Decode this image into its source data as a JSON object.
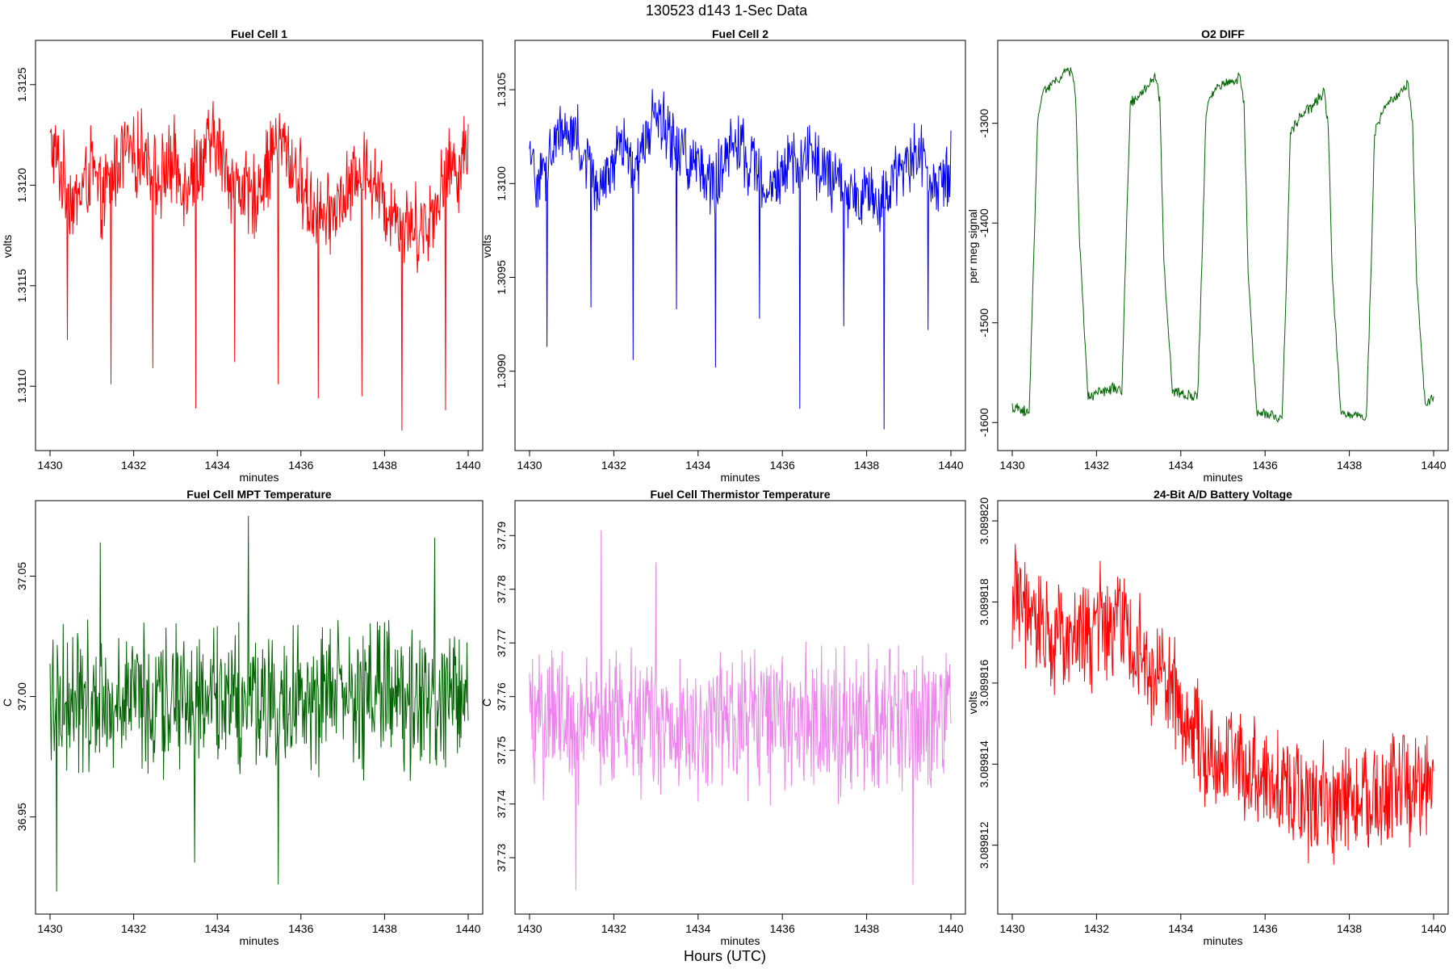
{
  "figure": {
    "title": "130523   d143   1-Sec Data",
    "xlabel": "Hours (UTC)"
  },
  "chart_data": [
    {
      "type": "line",
      "title": "Fuel Cell 1",
      "xlabel": "minutes",
      "ylabel": "volts",
      "color": "#ff0000",
      "xlim": [
        1430,
        1440
      ],
      "ylim": [
        1.31072,
        1.31268
      ],
      "xticks": [
        1430,
        1432,
        1434,
        1436,
        1438,
        1440
      ],
      "yticks": [
        1.311,
        1.3115,
        1.312,
        1.3125
      ],
      "ytick_labels": [
        "1.3110",
        "1.3115",
        "1.3120",
        "1.3125"
      ],
      "series": [
        {
          "x": [
            1430.0,
            1430.2,
            1430.4,
            1430.6,
            1430.8,
            1431.0,
            1431.2,
            1431.4,
            1431.6,
            1431.8,
            1432.0,
            1432.2,
            1432.4,
            1432.6,
            1432.8,
            1433.0,
            1433.2,
            1433.4,
            1433.6,
            1433.8,
            1434.0,
            1434.2,
            1434.4,
            1434.6,
            1434.8,
            1435.0,
            1435.2,
            1435.4,
            1435.6,
            1435.8,
            1436.0,
            1436.2,
            1436.4,
            1436.6,
            1436.8,
            1437.0,
            1437.2,
            1437.4,
            1437.6,
            1437.8,
            1438.0,
            1438.2,
            1438.4,
            1438.6,
            1438.8,
            1439.0,
            1439.2,
            1439.4,
            1439.6,
            1439.8,
            1440.0
          ],
          "y": [
            1.3122,
            1.3121,
            1.312,
            1.3119,
            1.312,
            1.3121,
            1.3119,
            1.312,
            1.3121,
            1.3122,
            1.3121,
            1.3122,
            1.3121,
            1.312,
            1.3121,
            1.3121,
            1.312,
            1.3121,
            1.3121,
            1.3122,
            1.3122,
            1.3121,
            1.312,
            1.312,
            1.3119,
            1.312,
            1.3121,
            1.3122,
            1.3122,
            1.3121,
            1.312,
            1.3119,
            1.3119,
            1.3118,
            1.3119,
            1.3119,
            1.312,
            1.3121,
            1.3121,
            1.312,
            1.3119,
            1.3119,
            1.3118,
            1.3118,
            1.3118,
            1.3118,
            1.3119,
            1.312,
            1.3121,
            1.3121,
            1.3122
          ]
        }
      ],
      "spikes": [
        {
          "x": 1430.42,
          "y": 1.31123
        },
        {
          "x": 1431.45,
          "y": 1.31101
        },
        {
          "x": 1432.45,
          "y": 1.31109
        },
        {
          "x": 1433.48,
          "y": 1.31089
        },
        {
          "x": 1434.42,
          "y": 1.31112
        },
        {
          "x": 1435.45,
          "y": 1.31101
        },
        {
          "x": 1436.42,
          "y": 1.31094
        },
        {
          "x": 1437.45,
          "y": 1.31095
        },
        {
          "x": 1438.42,
          "y": 1.31078
        },
        {
          "x": 1439.45,
          "y": 1.31088
        }
      ]
    },
    {
      "type": "line",
      "title": "Fuel Cell 2",
      "xlabel": "minutes",
      "ylabel": "volts",
      "color": "#0000ff",
      "xlim": [
        1430,
        1440
      ],
      "ylim": [
        1.30862,
        1.31072
      ],
      "xticks": [
        1430,
        1432,
        1434,
        1436,
        1438,
        1440
      ],
      "yticks": [
        1.309,
        1.3095,
        1.31,
        1.3105
      ],
      "ytick_labels": [
        "1.3090",
        "1.3095",
        "1.3100",
        "1.3105"
      ],
      "series": [
        {
          "x": [
            1430.0,
            1430.2,
            1430.4,
            1430.6,
            1430.8,
            1431.0,
            1431.2,
            1431.4,
            1431.6,
            1431.8,
            1432.0,
            1432.2,
            1432.4,
            1432.6,
            1432.8,
            1433.0,
            1433.2,
            1433.4,
            1433.6,
            1433.8,
            1434.0,
            1434.2,
            1434.4,
            1434.6,
            1434.8,
            1435.0,
            1435.2,
            1435.4,
            1435.6,
            1435.8,
            1436.0,
            1436.2,
            1436.4,
            1436.6,
            1436.8,
            1437.0,
            1437.2,
            1437.4,
            1437.6,
            1437.8,
            1438.0,
            1438.2,
            1438.4,
            1438.6,
            1438.8,
            1439.0,
            1439.2,
            1439.4,
            1439.6,
            1439.8,
            1440.0
          ],
          "y": [
            1.3101,
            1.31,
            1.3101,
            1.3102,
            1.3103,
            1.3103,
            1.3102,
            1.3101,
            1.31,
            1.31,
            1.3101,
            1.3102,
            1.3101,
            1.3101,
            1.3103,
            1.3104,
            1.3103,
            1.3102,
            1.3102,
            1.3101,
            1.3101,
            1.31,
            1.31,
            1.3101,
            1.3102,
            1.3102,
            1.3101,
            1.3101,
            1.31,
            1.31,
            1.31,
            1.3101,
            1.3101,
            1.3102,
            1.3101,
            1.3101,
            1.31,
            1.31,
            1.3099,
            1.3099,
            1.31,
            1.3099,
            1.3099,
            1.31,
            1.3101,
            1.3101,
            1.3102,
            1.3101,
            1.31,
            1.31,
            1.3101
          ]
        }
      ],
      "spikes": [
        {
          "x": 1430.42,
          "y": 1.30913
        },
        {
          "x": 1431.45,
          "y": 1.30934
        },
        {
          "x": 1432.45,
          "y": 1.30906
        },
        {
          "x": 1433.48,
          "y": 1.30933
        },
        {
          "x": 1434.42,
          "y": 1.30902
        },
        {
          "x": 1435.45,
          "y": 1.30928
        },
        {
          "x": 1436.42,
          "y": 1.3088
        },
        {
          "x": 1437.45,
          "y": 1.30924
        },
        {
          "x": 1438.42,
          "y": 1.30869
        },
        {
          "x": 1439.45,
          "y": 1.30922
        }
      ]
    },
    {
      "type": "line",
      "title": "O2 DIFF",
      "xlabel": "minutes",
      "ylabel": "per meg signal",
      "color": "#006400",
      "xlim": [
        1430,
        1440
      ],
      "ylim": [
        -1620,
        -1225
      ],
      "xticks": [
        1430,
        1432,
        1434,
        1436,
        1438,
        1440
      ],
      "yticks": [
        -1600,
        -1500,
        -1400,
        -1300
      ],
      "ytick_labels": [
        "-1600",
        "-1500",
        "-1400",
        "-1300"
      ],
      "series": [
        {
          "x": [
            1430.0,
            1430.4,
            1430.5,
            1430.6,
            1430.7,
            1431.4,
            1431.5,
            1431.6,
            1431.8,
            1432.4,
            1432.6,
            1432.7,
            1432.8,
            1433.4,
            1433.5,
            1433.6,
            1433.8,
            1434.4,
            1434.5,
            1434.6,
            1434.8,
            1435.4,
            1435.5,
            1435.6,
            1435.8,
            1436.4,
            1436.5,
            1436.6,
            1436.8,
            1437.4,
            1437.5,
            1437.6,
            1437.8,
            1438.4,
            1438.5,
            1438.6,
            1438.8,
            1439.4,
            1439.5,
            1439.6,
            1439.8,
            1440.0
          ],
          "y": [
            -1585,
            -1590,
            -1450,
            -1300,
            -1270,
            -1245,
            -1270,
            -1420,
            -1575,
            -1565,
            -1570,
            -1420,
            -1280,
            -1255,
            -1275,
            -1440,
            -1570,
            -1575,
            -1440,
            -1290,
            -1265,
            -1255,
            -1280,
            -1450,
            -1590,
            -1595,
            -1470,
            -1310,
            -1295,
            -1270,
            -1300,
            -1460,
            -1590,
            -1595,
            -1470,
            -1310,
            -1285,
            -1260,
            -1300,
            -1460,
            -1580,
            -1575
          ]
        }
      ]
    },
    {
      "type": "line",
      "title": "Fuel Cell MPT Temperature",
      "xlabel": "minutes",
      "ylabel": "C",
      "color": "#006400",
      "xlim": [
        1430,
        1440
      ],
      "ylim": [
        36.913,
        37.078
      ],
      "xticks": [
        1430,
        1432,
        1434,
        1436,
        1438,
        1440
      ],
      "yticks": [
        36.95,
        37.0,
        37.05
      ],
      "ytick_labels": [
        "36.95",
        "37.00",
        "37.05"
      ],
      "mean": 37.0,
      "amplitude": 0.03,
      "series": [],
      "spikes": [
        {
          "x": 1430.15,
          "y": 36.919
        },
        {
          "x": 1431.2,
          "y": 37.064
        },
        {
          "x": 1433.45,
          "y": 36.931
        },
        {
          "x": 1434.75,
          "y": 37.075
        },
        {
          "x": 1435.45,
          "y": 36.922
        },
        {
          "x": 1439.2,
          "y": 37.066
        }
      ]
    },
    {
      "type": "line",
      "title": "Fuel Cell Thermistor Temperature",
      "xlabel": "minutes",
      "ylabel": "C",
      "color": "#ee82ee",
      "xlim": [
        1430,
        1440
      ],
      "ylim": [
        37.721,
        37.795
      ],
      "xticks": [
        1430,
        1432,
        1434,
        1436,
        1438,
        1440
      ],
      "yticks": [
        37.73,
        37.74,
        37.75,
        37.76,
        37.77,
        37.78,
        37.79
      ],
      "ytick_labels": [
        "37.73",
        "37.74",
        "37.75",
        "37.76",
        "37.77",
        "37.78",
        "37.79"
      ],
      "mean": 37.755,
      "amplitude": 0.013,
      "series": [],
      "spikes": [
        {
          "x": 1431.1,
          "y": 37.724
        },
        {
          "x": 1431.7,
          "y": 37.791
        },
        {
          "x": 1433.0,
          "y": 37.785
        },
        {
          "x": 1439.1,
          "y": 37.725
        }
      ]
    },
    {
      "type": "line",
      "title": "24-Bit A/D Battery Voltage",
      "xlabel": "minutes",
      "ylabel": "volts",
      "color": "#ff0000",
      "xlim": [
        1430,
        1440
      ],
      "ylim": [
        3.0898105,
        3.0898203
      ],
      "xticks": [
        1430,
        1432,
        1434,
        1436,
        1438,
        1440
      ],
      "yticks": [
        3.089812,
        3.089814,
        3.089816,
        3.089818,
        3.08982
      ],
      "ytick_labels": [
        "3.089812",
        "3.089814",
        "3.089816",
        "3.089818",
        "3.089820"
      ],
      "series": [
        {
          "x": [
            1430.0,
            1430.5,
            1431.0,
            1431.5,
            1432.0,
            1432.5,
            1433.0,
            1433.5,
            1434.0,
            1434.5,
            1435.0,
            1435.5,
            1436.0,
            1436.5,
            1437.0,
            1437.5,
            1438.0,
            1438.5,
            1439.0,
            1439.5,
            1440.0
          ],
          "y": [
            3.089818,
            3.0898176,
            3.0898172,
            3.0898172,
            3.0898174,
            3.0898176,
            3.0898169,
            3.0898161,
            3.0898155,
            3.0898143,
            3.089814,
            3.089814,
            3.0898137,
            3.0898133,
            3.0898131,
            3.089813,
            3.0898132,
            3.0898131,
            3.0898134,
            3.0898134,
            3.0898135
          ]
        }
      ]
    }
  ]
}
